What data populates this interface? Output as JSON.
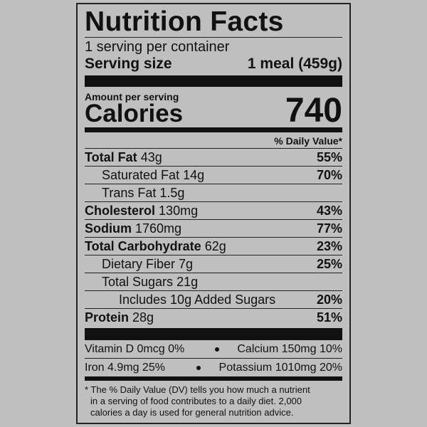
{
  "title": "Nutrition Facts",
  "servings": "1 serving per container",
  "serving_size": {
    "label": "Serving size",
    "value": "1 meal (459g)"
  },
  "amount_per_serving": "Amount per serving",
  "calories": {
    "label": "Calories",
    "value": 740
  },
  "daily_value_header": "% Daily Value*",
  "nutrients": [
    {
      "name": "Total Fat",
      "amount": "43g",
      "dv": "55%"
    },
    {
      "name": "Saturated Fat",
      "amount": "14g",
      "dv": "70%"
    },
    {
      "name": "Trans Fat",
      "amount": "1.5g"
    },
    {
      "name": "Cholesterol",
      "amount": "130mg",
      "dv": "43%"
    },
    {
      "name": "Sodium",
      "amount": "1760mg",
      "dv": "77%"
    },
    {
      "name": "Total Carbohydrate",
      "amount": "62g",
      "dv": "23%"
    },
    {
      "name": "Dietary Fiber",
      "amount": "7g",
      "dv": "25%"
    },
    {
      "name": "Total Sugars",
      "amount": "21g"
    },
    {
      "name": "Includes 10g Added Sugars",
      "dv": "20%"
    },
    {
      "name": "Protein",
      "amount": "28g",
      "dv": "51%"
    }
  ],
  "micronutrients": [
    [
      "Vitamin D 0mcg 0%",
      "Calcium 150mg 10%"
    ],
    [
      "Iron 4.9mg 25%",
      "Potassium 1010mg 20%"
    ]
  ],
  "footnote": [
    "* The % Daily Value (DV) tells you how much a nutrient",
    "in a serving of food contributes to a daily diet. 2,000",
    "calories a day is used for general nutrition advice."
  ]
}
